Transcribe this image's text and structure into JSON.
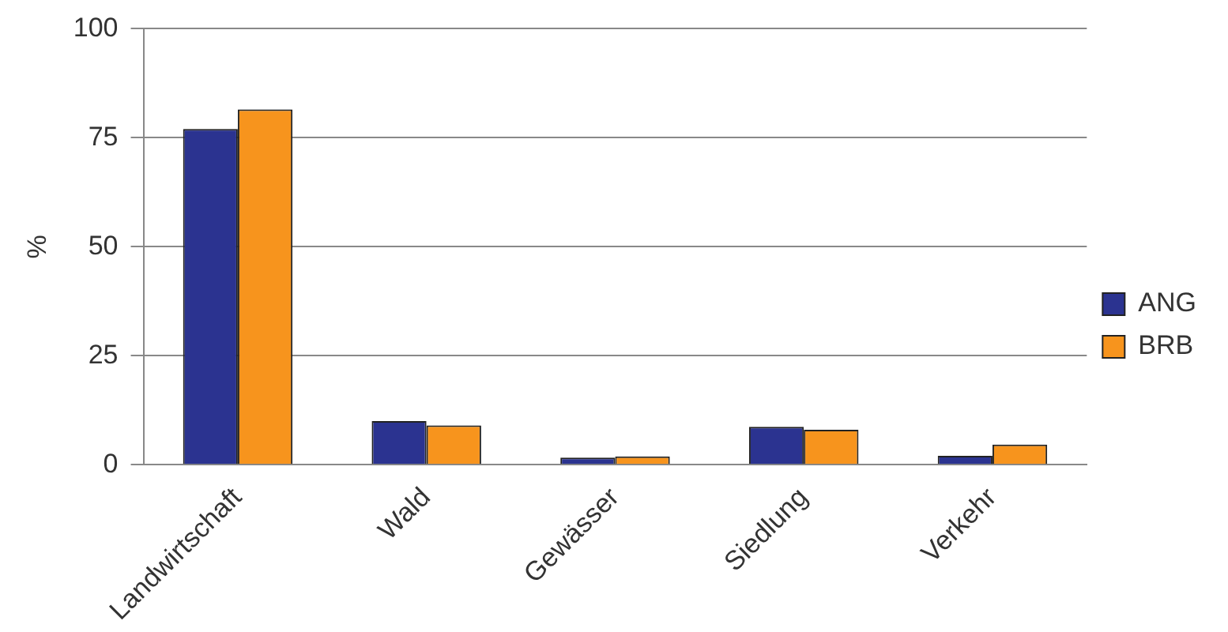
{
  "chart_data": {
    "type": "bar",
    "ylabel": "%",
    "categories": [
      "Landwirtschaft",
      "Wald",
      "Gewässer",
      "Siedlung",
      "Verkehr"
    ],
    "series": [
      {
        "name": "ANG",
        "color": "#2b3390",
        "values": [
          77,
          10,
          1.6,
          8.7,
          2
        ]
      },
      {
        "name": "BRB",
        "color": "#f7941d",
        "values": [
          81.5,
          9,
          1.9,
          8,
          4.6
        ]
      }
    ],
    "ylim": [
      0,
      100
    ],
    "yticks": [
      0,
      25,
      50,
      75,
      100
    ],
    "grid": "y",
    "legend": "right"
  }
}
